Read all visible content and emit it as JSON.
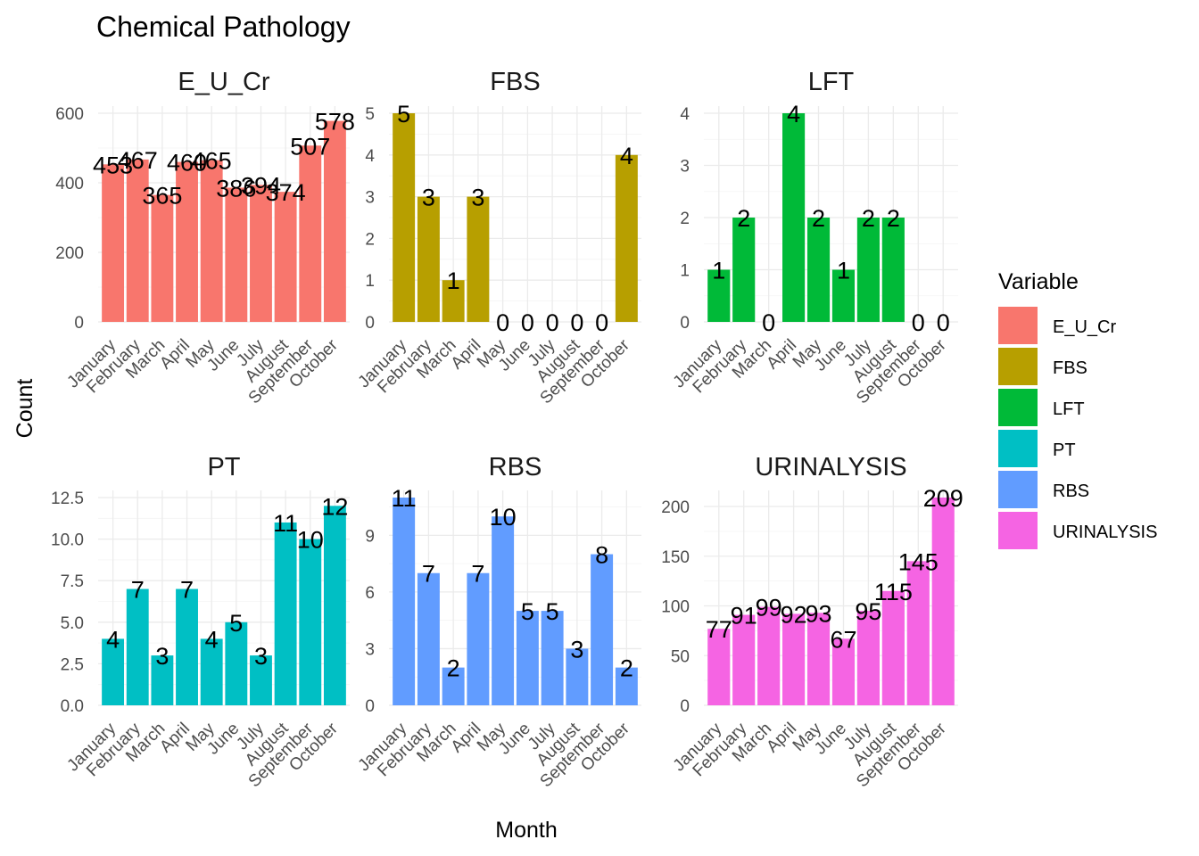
{
  "title": "Chemical Pathology",
  "xlabel": "Month",
  "ylabel": "Count",
  "legend": {
    "title": "Variable",
    "placement": "right",
    "items": [
      {
        "label": "E_U_Cr",
        "color": "#F8766D"
      },
      {
        "label": "FBS",
        "color": "#B79F00"
      },
      {
        "label": "LFT",
        "color": "#00BA38"
      },
      {
        "label": "PT",
        "color": "#00BFC4"
      },
      {
        "label": "RBS",
        "color": "#619CFF"
      },
      {
        "label": "URINALYSIS",
        "color": "#F564E3"
      }
    ]
  },
  "chart_data": {
    "type": "bar",
    "faceted": true,
    "grid": true,
    "categories": [
      "January",
      "February",
      "March",
      "April",
      "May",
      "June",
      "July",
      "August",
      "September",
      "October"
    ],
    "series": [
      {
        "name": "E_U_Cr",
        "color": "#F8766D",
        "values": [
          453,
          467,
          365,
          460,
          465,
          386,
          394,
          374,
          507,
          578
        ],
        "ylim": [
          0,
          600
        ],
        "yticks": [
          {
            "v": 0,
            "label": "0"
          },
          {
            "v": 200,
            "label": "200"
          },
          {
            "v": 400,
            "label": "400"
          },
          {
            "v": 600,
            "label": "600"
          }
        ]
      },
      {
        "name": "FBS",
        "color": "#B79F00",
        "values": [
          5,
          3,
          1,
          3,
          0,
          0,
          0,
          0,
          0,
          4
        ],
        "ylim": [
          0,
          5
        ],
        "yticks": [
          {
            "v": 0,
            "label": "0"
          },
          {
            "v": 1,
            "label": "1"
          },
          {
            "v": 2,
            "label": "2"
          },
          {
            "v": 3,
            "label": "3"
          },
          {
            "v": 4,
            "label": "4"
          },
          {
            "v": 5,
            "label": "5"
          }
        ]
      },
      {
        "name": "LFT",
        "color": "#00BA38",
        "values": [
          1,
          2,
          0,
          4,
          2,
          1,
          2,
          2,
          0,
          0
        ],
        "ylim": [
          0,
          4
        ],
        "yticks": [
          {
            "v": 0,
            "label": "0"
          },
          {
            "v": 1,
            "label": "1"
          },
          {
            "v": 2,
            "label": "2"
          },
          {
            "v": 3,
            "label": "3"
          },
          {
            "v": 4,
            "label": "4"
          }
        ]
      },
      {
        "name": "PT",
        "color": "#00BFC4",
        "values": [
          4,
          7,
          3,
          7,
          4,
          5,
          3,
          11,
          10,
          12
        ],
        "ylim": [
          0,
          12.5
        ],
        "yticks": [
          {
            "v": 0,
            "label": "0.0"
          },
          {
            "v": 2.5,
            "label": "2.5"
          },
          {
            "v": 5,
            "label": "5.0"
          },
          {
            "v": 7.5,
            "label": "7.5"
          },
          {
            "v": 10,
            "label": "10.0"
          },
          {
            "v": 12.5,
            "label": "12.5"
          }
        ]
      },
      {
        "name": "RBS",
        "color": "#619CFF",
        "values": [
          11,
          7,
          2,
          7,
          10,
          5,
          5,
          3,
          8,
          2
        ],
        "ylim": [
          0,
          11
        ],
        "yticks": [
          {
            "v": 0,
            "label": "0"
          },
          {
            "v": 3,
            "label": "3"
          },
          {
            "v": 6,
            "label": "6"
          },
          {
            "v": 9,
            "label": "9"
          }
        ]
      },
      {
        "name": "URINALYSIS",
        "color": "#F564E3",
        "values": [
          77,
          91,
          99,
          92,
          93,
          67,
          95,
          115,
          145,
          209
        ],
        "ylim": [
          0,
          209
        ],
        "yticks": [
          {
            "v": 0,
            "label": "0"
          },
          {
            "v": 50,
            "label": "50"
          },
          {
            "v": 100,
            "label": "100"
          },
          {
            "v": 150,
            "label": "150"
          },
          {
            "v": 200,
            "label": "200"
          }
        ]
      }
    ]
  }
}
